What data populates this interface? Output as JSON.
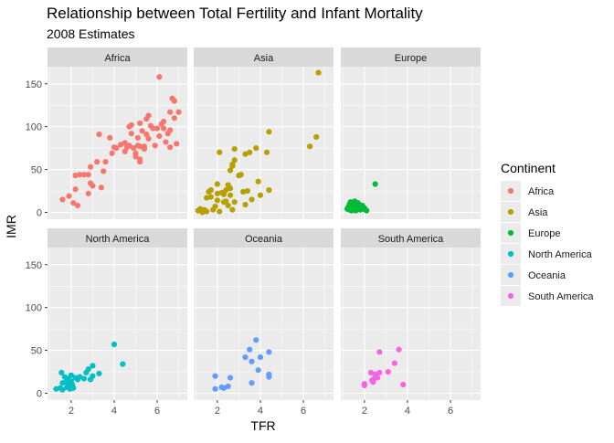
{
  "chart_data": {
    "type": "scatter",
    "title": "Relationship between Total Fertility and Infant Mortality",
    "subtitle": "2008 Estimates",
    "xlabel": "TFR",
    "ylabel": "IMR",
    "xlim": [
      0.9,
      7.4
    ],
    "ylim": [
      -8,
      170
    ],
    "x_ticks": [
      2,
      4,
      6
    ],
    "y_ticks": [
      0,
      50,
      100,
      150
    ],
    "grid": true,
    "legend": {
      "title": "Continent",
      "placement": "right",
      "entries": [
        "Africa",
        "Asia",
        "Europe",
        "North America",
        "Oceania",
        "South America"
      ]
    },
    "series": [
      {
        "name": "Africa",
        "color": "#F8766D",
        "points": [
          [
            1.6,
            15
          ],
          [
            1.9,
            19
          ],
          [
            2.1,
            11
          ],
          [
            2.2,
            27
          ],
          [
            2.3,
            8
          ],
          [
            2.2,
            43
          ],
          [
            2.4,
            44
          ],
          [
            2.6,
            44
          ],
          [
            2.8,
            44
          ],
          [
            2.8,
            22
          ],
          [
            2.9,
            34
          ],
          [
            2.9,
            53
          ],
          [
            3.0,
            31
          ],
          [
            3.2,
            59
          ],
          [
            3.3,
            91
          ],
          [
            3.4,
            29
          ],
          [
            3.5,
            48
          ],
          [
            3.6,
            59
          ],
          [
            3.8,
            87
          ],
          [
            3.9,
            69
          ],
          [
            4.0,
            76
          ],
          [
            4.1,
            75
          ],
          [
            4.3,
            79
          ],
          [
            4.5,
            71
          ],
          [
            4.5,
            81
          ],
          [
            4.6,
            76
          ],
          [
            4.7,
            78
          ],
          [
            4.7,
            100
          ],
          [
            4.8,
            92
          ],
          [
            4.8,
            102
          ],
          [
            4.9,
            75
          ],
          [
            5.0,
            69
          ],
          [
            5.0,
            65
          ],
          [
            5.1,
            87
          ],
          [
            5.1,
            78
          ],
          [
            5.2,
            77
          ],
          [
            5.2,
            104
          ],
          [
            5.2,
            62
          ],
          [
            5.2,
            59
          ],
          [
            5.3,
            95
          ],
          [
            5.4,
            74
          ],
          [
            5.4,
            77
          ],
          [
            5.5,
            91
          ],
          [
            5.5,
            109
          ],
          [
            5.6,
            86
          ],
          [
            5.6,
            113
          ],
          [
            5.7,
            101
          ],
          [
            5.8,
            98
          ],
          [
            5.9,
            78
          ],
          [
            6.0,
            98
          ],
          [
            6.1,
            89
          ],
          [
            6.1,
            158
          ],
          [
            6.2,
            103
          ],
          [
            6.3,
            98
          ],
          [
            6.3,
            106
          ],
          [
            6.4,
            82
          ],
          [
            6.5,
            92
          ],
          [
            6.6,
            96
          ],
          [
            6.6,
            76
          ],
          [
            6.6,
            117
          ],
          [
            6.7,
            133
          ],
          [
            6.8,
            130
          ],
          [
            6.8,
            110
          ],
          [
            6.9,
            80
          ],
          [
            7.0,
            117
          ]
        ]
      },
      {
        "name": "Asia",
        "color": "#B79F00",
        "points": [
          [
            1.1,
            2
          ],
          [
            1.2,
            4
          ],
          [
            1.3,
            0
          ],
          [
            1.4,
            3
          ],
          [
            1.5,
            17
          ],
          [
            1.5,
            1
          ],
          [
            1.6,
            24
          ],
          [
            1.7,
            18
          ],
          [
            1.7,
            26
          ],
          [
            1.8,
            3
          ],
          [
            1.9,
            7
          ],
          [
            2.0,
            14
          ],
          [
            2.0,
            22
          ],
          [
            2.0,
            33
          ],
          [
            2.1,
            70
          ],
          [
            2.1,
            1
          ],
          [
            2.2,
            23
          ],
          [
            2.3,
            12
          ],
          [
            2.3,
            21
          ],
          [
            2.4,
            26
          ],
          [
            2.4,
            13
          ],
          [
            2.5,
            32
          ],
          [
            2.5,
            8
          ],
          [
            2.6,
            20
          ],
          [
            2.6,
            28
          ],
          [
            2.6,
            49
          ],
          [
            2.7,
            54
          ],
          [
            2.7,
            56
          ],
          [
            2.7,
            3
          ],
          [
            2.8,
            61
          ],
          [
            2.8,
            74
          ],
          [
            2.8,
            12
          ],
          [
            3.0,
            43
          ],
          [
            3.1,
            44
          ],
          [
            3.2,
            24
          ],
          [
            3.3,
            68
          ],
          [
            3.3,
            9
          ],
          [
            3.4,
            25
          ],
          [
            3.5,
            70
          ],
          [
            3.6,
            15
          ],
          [
            3.8,
            75
          ],
          [
            3.9,
            36
          ],
          [
            4.0,
            20
          ],
          [
            4.3,
            70
          ],
          [
            4.4,
            26
          ],
          [
            4.4,
            94
          ],
          [
            6.3,
            77
          ],
          [
            6.6,
            88
          ],
          [
            6.7,
            163
          ]
        ]
      },
      {
        "name": "Europe",
        "color": "#00BA38",
        "points": [
          [
            1.2,
            4
          ],
          [
            1.25,
            6
          ],
          [
            1.3,
            3
          ],
          [
            1.3,
            9
          ],
          [
            1.35,
            12
          ],
          [
            1.4,
            5
          ],
          [
            1.4,
            2
          ],
          [
            1.45,
            11
          ],
          [
            1.5,
            6
          ],
          [
            1.5,
            3
          ],
          [
            1.55,
            13
          ],
          [
            1.6,
            7
          ],
          [
            1.6,
            2
          ],
          [
            1.65,
            9
          ],
          [
            1.7,
            4
          ],
          [
            1.7,
            11
          ],
          [
            1.75,
            6
          ],
          [
            1.8,
            3
          ],
          [
            1.85,
            5
          ],
          [
            1.9,
            8
          ],
          [
            1.95,
            4
          ],
          [
            2.0,
            5
          ],
          [
            2.05,
            3
          ],
          [
            2.1,
            2
          ],
          [
            2.5,
            33
          ]
        ]
      },
      {
        "name": "North America",
        "color": "#00BFC4",
        "points": [
          [
            1.3,
            5
          ],
          [
            1.5,
            6
          ],
          [
            1.55,
            24
          ],
          [
            1.6,
            12
          ],
          [
            1.6,
            4
          ],
          [
            1.7,
            19
          ],
          [
            1.75,
            13
          ],
          [
            1.8,
            7
          ],
          [
            1.85,
            17
          ],
          [
            1.9,
            9
          ],
          [
            1.95,
            5
          ],
          [
            2.0,
            14
          ],
          [
            2.0,
            21
          ],
          [
            2.05,
            10
          ],
          [
            2.1,
            6
          ],
          [
            2.2,
            18
          ],
          [
            2.3,
            16
          ],
          [
            2.4,
            19
          ],
          [
            2.6,
            17
          ],
          [
            2.7,
            24
          ],
          [
            2.8,
            28
          ],
          [
            2.9,
            16
          ],
          [
            3.0,
            32
          ],
          [
            3.0,
            20
          ],
          [
            3.3,
            23
          ],
          [
            4.0,
            57
          ],
          [
            4.4,
            34
          ]
        ]
      },
      {
        "name": "Oceania",
        "color": "#619CFF",
        "points": [
          [
            1.9,
            20
          ],
          [
            1.9,
            5
          ],
          [
            2.2,
            7
          ],
          [
            2.3,
            6
          ],
          [
            2.5,
            8
          ],
          [
            2.6,
            18
          ],
          [
            3.3,
            42
          ],
          [
            3.5,
            51
          ],
          [
            3.6,
            12
          ],
          [
            3.6,
            37
          ],
          [
            3.8,
            62
          ],
          [
            3.9,
            27
          ],
          [
            4.0,
            42
          ],
          [
            4.4,
            48
          ],
          [
            4.4,
            22
          ],
          [
            4.4,
            19
          ]
        ]
      },
      {
        "name": "South America",
        "color": "#F564E3",
        "points": [
          [
            2.0,
            9
          ],
          [
            2.0,
            11
          ],
          [
            2.3,
            24
          ],
          [
            2.35,
            15
          ],
          [
            2.4,
            13
          ],
          [
            2.45,
            17
          ],
          [
            2.5,
            22
          ],
          [
            2.6,
            18
          ],
          [
            2.7,
            24
          ],
          [
            2.7,
            48
          ],
          [
            3.1,
            25
          ],
          [
            3.4,
            35
          ],
          [
            3.6,
            51
          ],
          [
            3.8,
            10
          ]
        ]
      }
    ]
  }
}
